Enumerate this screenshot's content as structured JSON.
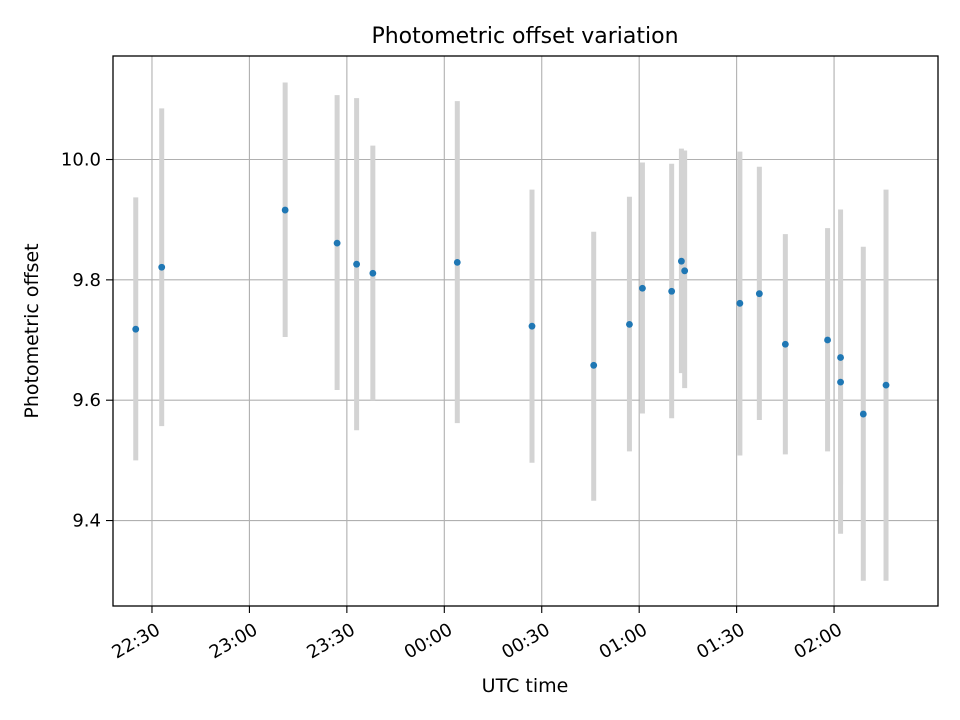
{
  "chart_data": {
    "type": "scatter",
    "title": "Photometric offset variation",
    "xlabel": "UTC time",
    "ylabel": "Photometric offset",
    "x_tick_labels": [
      "22:30",
      "23:00",
      "23:30",
      "00:00",
      "00:30",
      "01:00",
      "01:30",
      "02:00"
    ],
    "y_tick_labels": [
      "9.4",
      "9.6",
      "9.8",
      "10.0"
    ],
    "y_ticks": [
      9.4,
      9.6,
      9.8,
      10.0
    ],
    "xlim": [
      "22:18",
      "02:32"
    ],
    "ylim": [
      9.258,
      10.172
    ],
    "grid": true,
    "colors": {
      "points": "#1f77b4",
      "errorbars": "#d3d3d3",
      "grid": "#b0b0b0"
    },
    "points": [
      {
        "x": "22:25",
        "y": 9.718,
        "low": 9.5,
        "high": 9.937
      },
      {
        "x": "22:33",
        "y": 9.821,
        "low": 9.557,
        "high": 10.085
      },
      {
        "x": "23:11",
        "y": 9.916,
        "low": 9.705,
        "high": 10.128
      },
      {
        "x": "23:27",
        "y": 9.861,
        "low": 9.617,
        "high": 10.107
      },
      {
        "x": "23:33",
        "y": 9.826,
        "low": 9.55,
        "high": 10.102
      },
      {
        "x": "23:38",
        "y": 9.811,
        "low": 9.6,
        "high": 10.023
      },
      {
        "x": "00:04",
        "y": 9.829,
        "low": 9.562,
        "high": 10.097
      },
      {
        "x": "00:27",
        "y": 9.723,
        "low": 9.496,
        "high": 9.95
      },
      {
        "x": "00:46",
        "y": 9.658,
        "low": 9.433,
        "high": 9.88
      },
      {
        "x": "00:57",
        "y": 9.726,
        "low": 9.515,
        "high": 9.938
      },
      {
        "x": "01:01",
        "y": 9.786,
        "low": 9.578,
        "high": 9.995
      },
      {
        "x": "01:10",
        "y": 9.781,
        "low": 9.57,
        "high": 9.993
      },
      {
        "x": "01:13",
        "y": 9.831,
        "low": 9.645,
        "high": 10.018
      },
      {
        "x": "01:14",
        "y": 9.815,
        "low": 9.62,
        "high": 10.015
      },
      {
        "x": "01:31",
        "y": 9.761,
        "low": 9.508,
        "high": 10.013
      },
      {
        "x": "01:37",
        "y": 9.777,
        "low": 9.567,
        "high": 9.988
      },
      {
        "x": "01:45",
        "y": 9.693,
        "low": 9.51,
        "high": 9.876
      },
      {
        "x": "01:58",
        "y": 9.7,
        "low": 9.515,
        "high": 9.886
      },
      {
        "x": "02:02",
        "y": 9.671,
        "low": 9.46,
        "high": 9.882
      },
      {
        "x": "02:02",
        "y": 9.63,
        "low": 9.378,
        "high": 9.917
      },
      {
        "x": "02:09",
        "y": 9.577,
        "low": 9.3,
        "high": 9.855
      },
      {
        "x": "02:16",
        "y": 9.625,
        "low": 9.3,
        "high": 9.95
      }
    ]
  }
}
